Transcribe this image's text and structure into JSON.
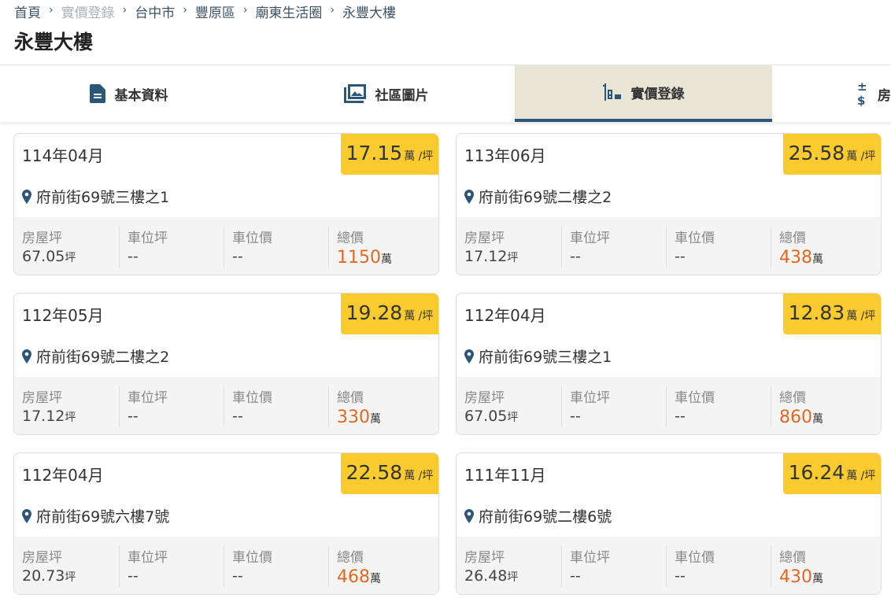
{
  "breadcrumb": [
    "首頁",
    "實價登錄",
    "台中市",
    "豐原區",
    "廟東生活圈",
    "永豐大樓"
  ],
  "title": "永豐大樓",
  "tabs": [
    {
      "label": "基本資料",
      "icon": "document-icon"
    },
    {
      "label": "社區圖片",
      "icon": "image-gallery-icon"
    },
    {
      "label": "實價登錄",
      "icon": "chart-icon",
      "active": true
    },
    {
      "label": "房",
      "icon": "plus-minus-dollar-icon"
    }
  ],
  "labels": {
    "area": "房屋坪",
    "parking_area": "車位坪",
    "parking_price": "車位價",
    "total": "總價",
    "ping": "坪",
    "wan": "萬",
    "per_ping": "萬 /坪"
  },
  "colors": {
    "badge": "#f9cb2e",
    "accent": "#2d5575",
    "price": "#e3671f"
  },
  "records": [
    {
      "date": "114年04月",
      "unit_price": "17.15",
      "address": "府前街69號三樓之1",
      "area": "67.05",
      "parking_area": "--",
      "parking_price": "--",
      "total": "1150"
    },
    {
      "date": "113年06月",
      "unit_price": "25.58",
      "address": "府前街69號二樓之2",
      "area": "17.12",
      "parking_area": "--",
      "parking_price": "--",
      "total": "438"
    },
    {
      "date": "112年05月",
      "unit_price": "19.28",
      "address": "府前街69號二樓之2",
      "area": "17.12",
      "parking_area": "--",
      "parking_price": "--",
      "total": "330"
    },
    {
      "date": "112年04月",
      "unit_price": "12.83",
      "address": "府前街69號三樓之1",
      "area": "67.05",
      "parking_area": "--",
      "parking_price": "--",
      "total": "860"
    },
    {
      "date": "112年04月",
      "unit_price": "22.58",
      "address": "府前街69號六樓7號",
      "area": "20.73",
      "parking_area": "--",
      "parking_price": "--",
      "total": "468"
    },
    {
      "date": "111年11月",
      "unit_price": "16.24",
      "address": "府前街69號二樓6號",
      "area": "26.48",
      "parking_area": "--",
      "parking_price": "--",
      "total": "430"
    }
  ]
}
